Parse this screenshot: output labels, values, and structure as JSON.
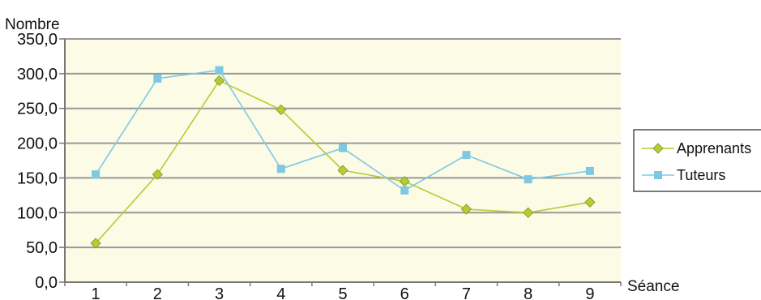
{
  "chart_data": {
    "type": "line",
    "ylabel": "Nombre",
    "xlabel": "Séance",
    "categories": [
      "1",
      "2",
      "3",
      "4",
      "5",
      "6",
      "7",
      "8",
      "9"
    ],
    "ylim": [
      0,
      350
    ],
    "yticks": [
      0,
      50,
      100,
      150,
      200,
      250,
      300,
      350
    ],
    "ytick_labels": [
      "0,0",
      "50,0",
      "100,0",
      "150,0",
      "200,0",
      "250,0",
      "300,0",
      "350,0"
    ],
    "grid": true,
    "legend_position": "right",
    "series": [
      {
        "name": "Apprenants",
        "color": "#b5cc33",
        "marker": "diamond",
        "values": [
          56,
          155,
          290,
          248,
          161,
          145,
          105,
          100,
          115
        ]
      },
      {
        "name": "Tuteurs",
        "color": "#7ec8e3",
        "marker": "square",
        "values": [
          155,
          293,
          305,
          163,
          193,
          132,
          183,
          148,
          160
        ]
      }
    ],
    "colors": {
      "plot_background": "#fbfbe6",
      "grid": "#999999",
      "axis": "#777777"
    }
  }
}
